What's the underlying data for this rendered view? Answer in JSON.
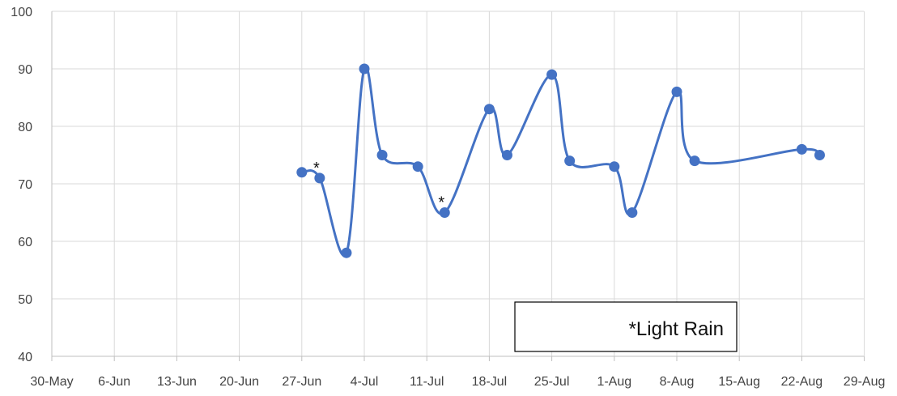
{
  "chart_data": {
    "type": "line",
    "title": "",
    "xlabel": "",
    "ylabel": "",
    "ylim": [
      40,
      100
    ],
    "yticks": [
      40,
      50,
      60,
      70,
      80,
      90,
      100
    ],
    "x_tick_labels": [
      "30-May",
      "6-Jun",
      "13-Jun",
      "20-Jun",
      "27-Jun",
      "4-Jul",
      "11-Jul",
      "18-Jul",
      "25-Jul",
      "1-Aug",
      "8-Aug",
      "15-Aug",
      "22-Aug",
      "29-Aug"
    ],
    "grid": true,
    "smooth": true,
    "series": [
      {
        "color": "#4472c4",
        "points": [
          {
            "x": "27-Jun",
            "y": 72
          },
          {
            "x": "29-Jun",
            "y": 71,
            "annotation": "*"
          },
          {
            "x": "2-Jul",
            "y": 58
          },
          {
            "x": "4-Jul",
            "y": 90
          },
          {
            "x": "6-Jul",
            "y": 75
          },
          {
            "x": "10-Jul",
            "y": 73
          },
          {
            "x": "13-Jul",
            "y": 65,
            "annotation": "*"
          },
          {
            "x": "18-Jul",
            "y": 83
          },
          {
            "x": "20-Jul",
            "y": 75
          },
          {
            "x": "25-Jul",
            "y": 89
          },
          {
            "x": "27-Jul",
            "y": 74
          },
          {
            "x": "1-Aug",
            "y": 73
          },
          {
            "x": "3-Aug",
            "y": 65
          },
          {
            "x": "8-Aug",
            "y": 86
          },
          {
            "x": "10-Aug",
            "y": 74
          },
          {
            "x": "22-Aug",
            "y": 76
          },
          {
            "x": "24-Aug",
            "y": 75
          }
        ]
      }
    ],
    "legend_note": "*Light Rain",
    "legend_position": "bottom-right"
  },
  "colors": {
    "grid": "#d9d9d9",
    "axis": "#bfbfbf",
    "line": "#4472c4"
  }
}
